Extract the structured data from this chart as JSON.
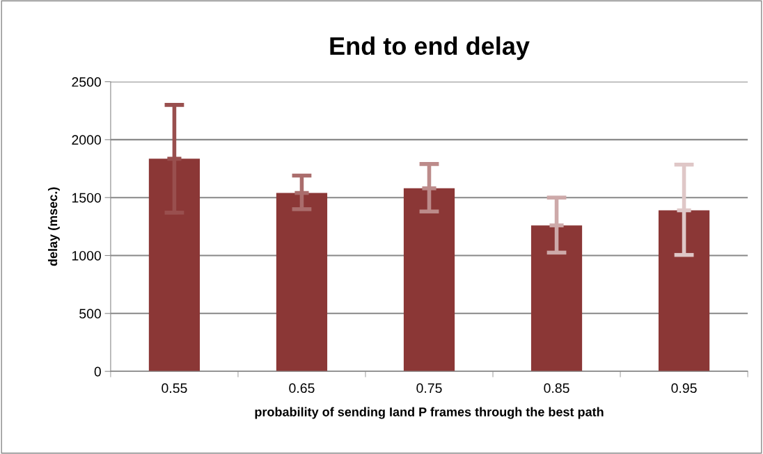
{
  "chart_data": {
    "type": "bar",
    "title": "End to end delay",
    "xlabel": "probability of sending Iand P frames through the best path",
    "ylabel": "delay (msec.)",
    "categories": [
      "0.55",
      "0.65",
      "0.75",
      "0.85",
      "0.95"
    ],
    "values": [
      1835,
      1540,
      1580,
      1260,
      1390
    ],
    "errors": [
      [
        1370,
        2300
      ],
      [
        1400,
        1690
      ],
      [
        1380,
        1790
      ],
      [
        1025,
        1500
      ],
      [
        1005,
        1785
      ]
    ],
    "color": "#8b3736",
    "ylim": [
      0,
      2500
    ],
    "yticks": [
      0,
      500,
      1000,
      1500,
      2000,
      2500
    ],
    "grid": "y",
    "legend": false
  }
}
